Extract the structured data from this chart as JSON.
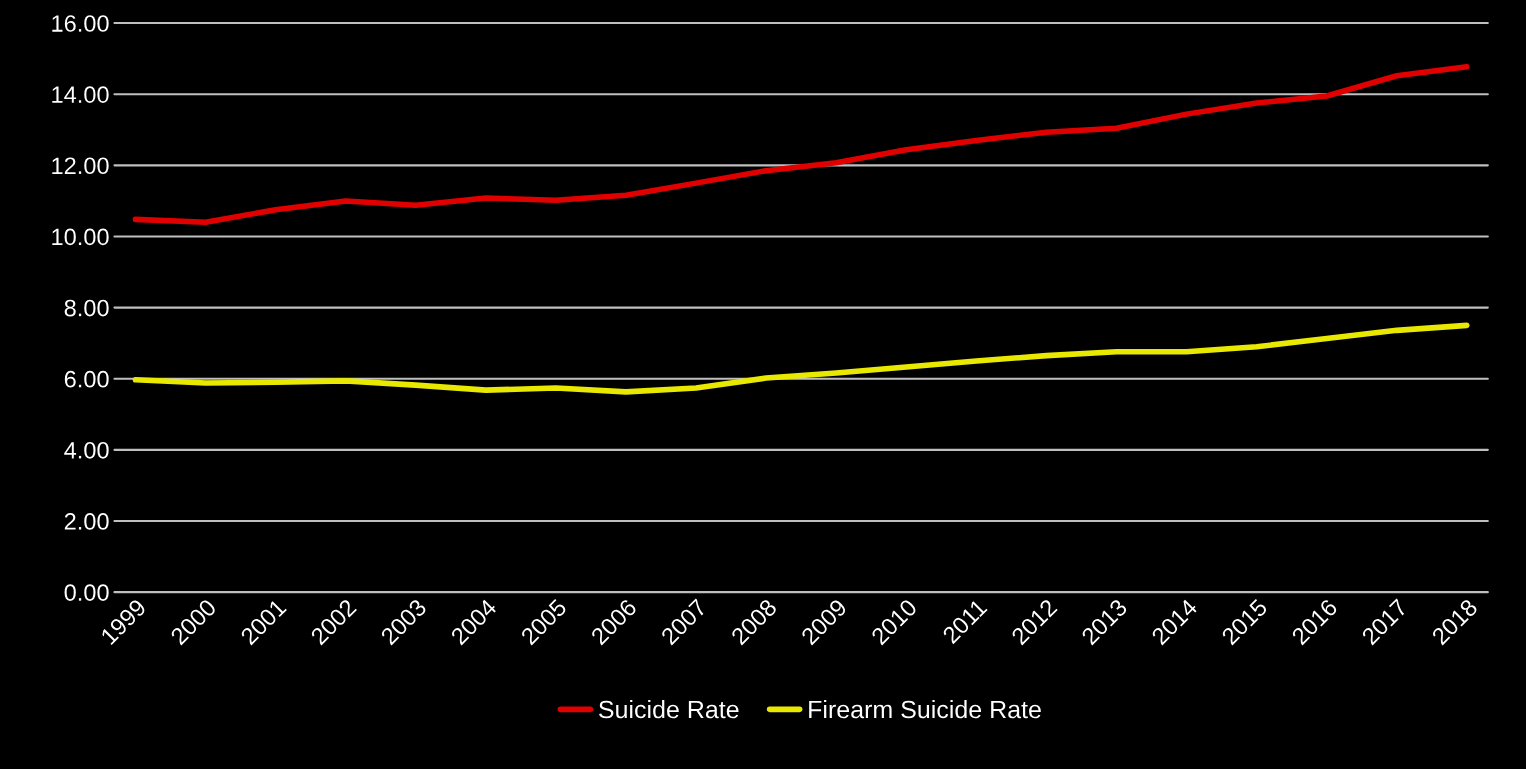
{
  "chart_data": {
    "type": "line",
    "categories": [
      "1999",
      "2000",
      "2001",
      "2002",
      "2003",
      "2004",
      "2005",
      "2006",
      "2007",
      "2008",
      "2009",
      "2010",
      "2011",
      "2012",
      "2013",
      "2014",
      "2015",
      "2016",
      "2017",
      "2018"
    ],
    "series": [
      {
        "name": "Suicide Rate",
        "color": "#e00000",
        "values": [
          10.48,
          10.4,
          10.75,
          11.0,
          10.88,
          11.08,
          11.02,
          11.16,
          11.5,
          11.85,
          12.07,
          12.44,
          12.7,
          12.93,
          13.04,
          13.44,
          13.75,
          13.95,
          14.52,
          14.77
        ]
      },
      {
        "name": "Firearm Suicide Rate",
        "color": "#e8e800",
        "values": [
          5.97,
          5.88,
          5.9,
          5.94,
          5.82,
          5.68,
          5.74,
          5.63,
          5.74,
          6.02,
          6.16,
          6.33,
          6.5,
          6.65,
          6.76,
          6.76,
          6.9,
          7.13,
          7.36,
          7.5
        ]
      }
    ],
    "ylim": [
      0,
      16
    ],
    "yticks": [
      {
        "value": 0,
        "label": "0.00"
      },
      {
        "value": 2,
        "label": "2.00"
      },
      {
        "value": 4,
        "label": "4.00"
      },
      {
        "value": 6,
        "label": "6.00"
      },
      {
        "value": 8,
        "label": "8.00"
      },
      {
        "value": 10,
        "label": "10.00"
      },
      {
        "value": 12,
        "label": "12.00"
      },
      {
        "value": 14,
        "label": "14.00"
      },
      {
        "value": 16,
        "label": "16.00"
      }
    ],
    "grid": "y",
    "legend": "bottom",
    "marker": "none",
    "line_style": "solid"
  }
}
